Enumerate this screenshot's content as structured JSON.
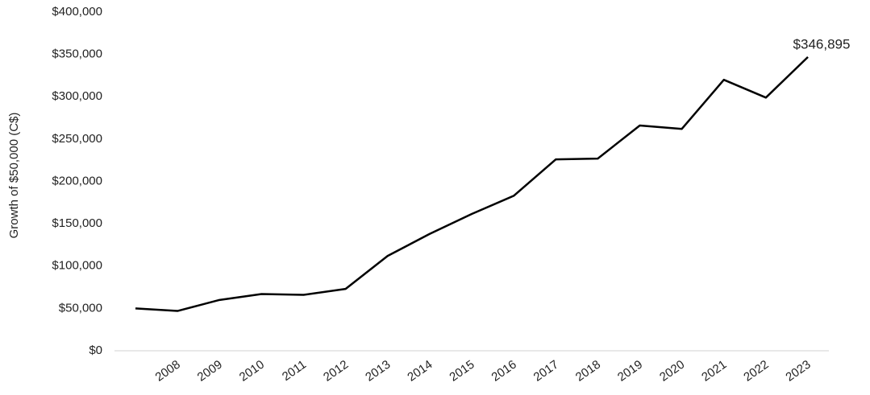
{
  "chart_data": {
    "type": "line",
    "y_label": "Growth of $50,000 (C$)",
    "categories": [
      null,
      "2008",
      "2009",
      "2010",
      "2011",
      "2012",
      "2013",
      "2014",
      "2015",
      "2016",
      "2017",
      "2018",
      "2019",
      "2020",
      "2021",
      "2022",
      "2023"
    ],
    "series": [
      {
        "color": "#000000",
        "values": [
          50000,
          47000,
          60000,
          67000,
          66000,
          73000,
          112000,
          138000,
          161500,
          183000,
          226000,
          227000,
          266000,
          262000,
          320000,
          299000,
          346895
        ],
        "value_labels": [
          null,
          null,
          null,
          null,
          null,
          null,
          null,
          null,
          null,
          null,
          null,
          null,
          null,
          null,
          null,
          null,
          "$346,895"
        ]
      }
    ],
    "ylim": [
      0,
      400000
    ],
    "yticks": [
      {
        "value": 0,
        "label": "$0"
      },
      {
        "value": 50000,
        "label": "$50,000"
      },
      {
        "value": 100000,
        "label": "$100,000"
      },
      {
        "value": 150000,
        "label": "$150,000"
      },
      {
        "value": 200000,
        "label": "$200,000"
      },
      {
        "value": 250000,
        "label": "$250,000"
      },
      {
        "value": 300000,
        "label": "$300,000"
      },
      {
        "value": 350000,
        "label": "$350,000"
      },
      {
        "value": 400000,
        "label": "$400,000"
      }
    ],
    "grid": false
  }
}
